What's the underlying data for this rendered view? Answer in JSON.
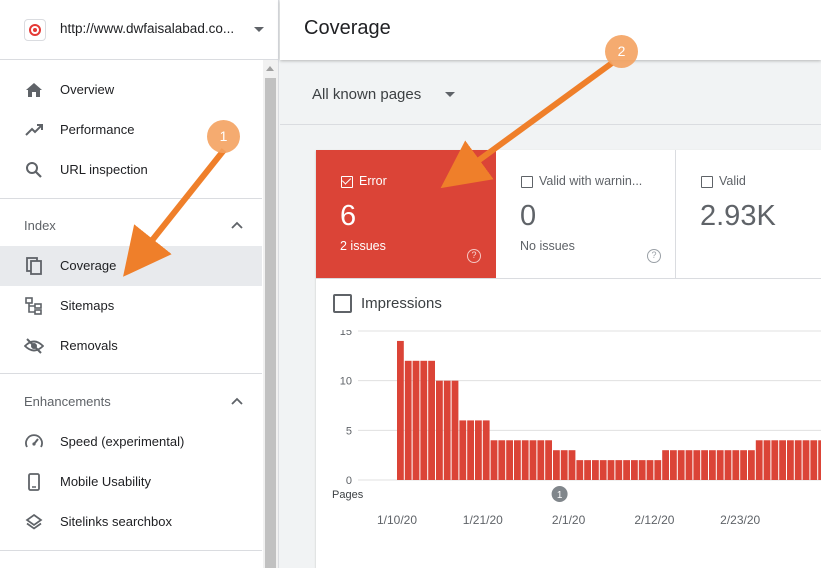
{
  "property": {
    "url": "http://www.dwfaisalabad.co...",
    "logo": "target-icon"
  },
  "header": {
    "title": "Coverage"
  },
  "filter": {
    "label": "All known pages"
  },
  "sidebar": {
    "items": [
      {
        "label": "Overview",
        "icon": "home-icon"
      },
      {
        "label": "Performance",
        "icon": "trending-up-icon"
      },
      {
        "label": "URL inspection",
        "icon": "search-icon"
      }
    ],
    "index": {
      "heading": "Index",
      "items": [
        {
          "label": "Coverage",
          "icon": "pages-icon",
          "active": true
        },
        {
          "label": "Sitemaps",
          "icon": "sitemap-icon"
        },
        {
          "label": "Removals",
          "icon": "eye-off-icon"
        }
      ]
    },
    "enhancements": {
      "heading": "Enhancements",
      "items": [
        {
          "label": "Speed (experimental)",
          "icon": "speedometer-icon"
        },
        {
          "label": "Mobile Usability",
          "icon": "phone-icon"
        },
        {
          "label": "Sitelinks searchbox",
          "icon": "layers-icon"
        }
      ]
    }
  },
  "tiles": {
    "error": {
      "label": "Error",
      "value": "6",
      "sub": "2 issues",
      "checked": true
    },
    "warning": {
      "label": "Valid with warnin...",
      "value": "0",
      "sub": "No issues",
      "checked": false
    },
    "valid": {
      "label": "Valid",
      "value": "2.93K",
      "checked": false
    }
  },
  "impressions": {
    "label": "Impressions",
    "checked": false
  },
  "colors": {
    "error": "#db4437",
    "annotation_arrow": "#ef7f2a",
    "annotation_badge": "#f4a261"
  },
  "annotations": [
    {
      "number": "1",
      "points_to": "Coverage"
    },
    {
      "number": "2",
      "points_to": "Error"
    }
  ],
  "chart_data": {
    "type": "bar",
    "ylabel": "Pages",
    "yticks": [
      0,
      5,
      10,
      15
    ],
    "ylim": [
      0,
      15
    ],
    "xtick_labels": [
      "1/10/20",
      "1/21/20",
      "2/1/20",
      "2/12/20",
      "2/23/20"
    ],
    "xtick_indices": [
      0,
      11,
      22,
      33,
      44
    ],
    "event_marker": {
      "label": "1",
      "index": 22
    },
    "values": [
      14,
      12,
      12,
      12,
      12,
      10,
      10,
      10,
      6,
      6,
      6,
      6,
      4,
      4,
      4,
      4,
      4,
      4,
      4,
      4,
      3,
      3,
      3,
      2,
      2,
      2,
      2,
      2,
      2,
      2,
      2,
      2,
      2,
      2,
      3,
      3,
      3,
      3,
      3,
      3,
      3,
      3,
      3,
      3,
      3,
      3,
      4,
      4,
      4,
      4,
      4,
      4,
      4,
      4,
      4,
      4
    ]
  }
}
